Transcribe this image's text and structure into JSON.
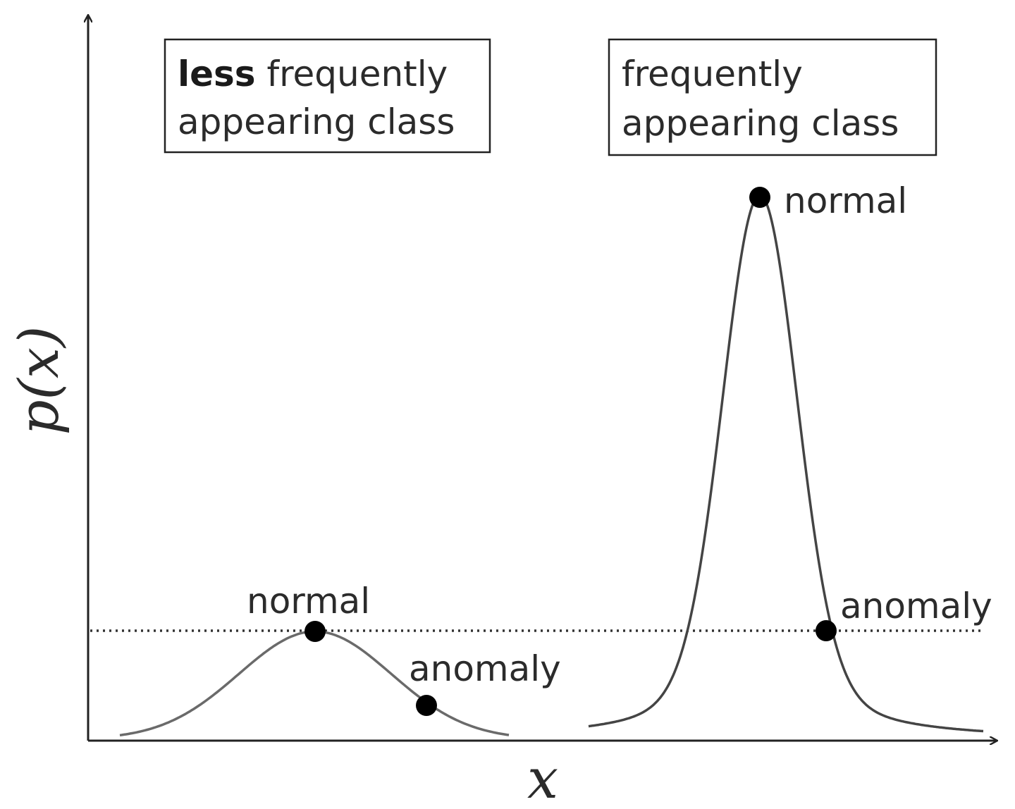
{
  "axes": {
    "y_label": "p(x)",
    "x_label": "x"
  },
  "boxes": [
    {
      "name": "less-frequent-class-box",
      "line1_bold": "less",
      "line1_rest": " frequently",
      "line2": "appearing class"
    },
    {
      "name": "frequent-class-box",
      "line1_bold": "",
      "line1_rest": "frequently",
      "line2": "appearing class"
    }
  ],
  "points": {
    "left_normal": "normal",
    "left_anomaly": "anomaly",
    "right_normal": "normal",
    "right_anomaly": "anomaly"
  },
  "colors": {
    "axis": "#222222",
    "curve": "#555555",
    "point": "#000000",
    "threshold": "#333333"
  }
}
